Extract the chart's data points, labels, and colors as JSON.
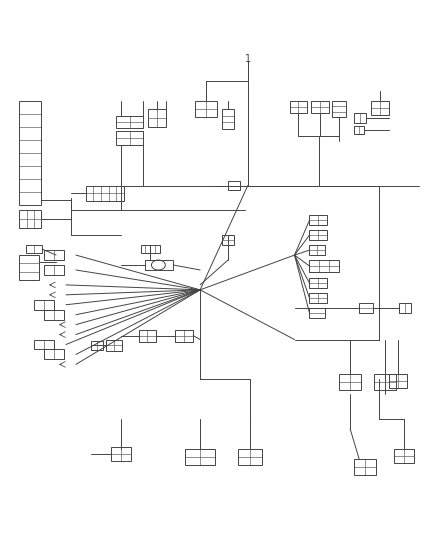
{
  "bg_color": "#ffffff",
  "lc": "#444444",
  "lw": 0.7,
  "fig_width": 4.38,
  "fig_height": 5.33,
  "dpi": 100
}
